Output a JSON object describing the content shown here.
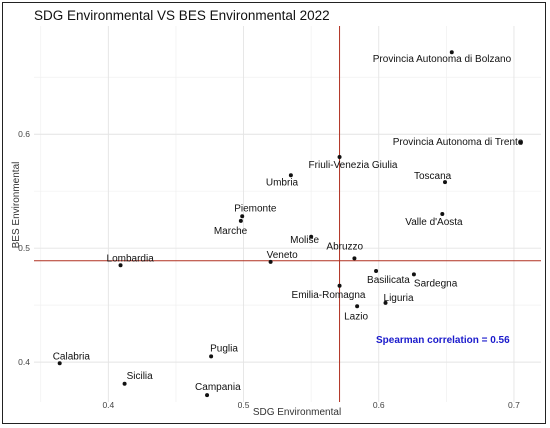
{
  "chart_data": {
    "type": "scatter",
    "title": "SDG Environmental VS BES Environmental 2022",
    "xlabel": "SDG Environmental",
    "ylabel": "BES Environmental",
    "xlim": [
      0.345,
      0.72
    ],
    "ylim": [
      0.365,
      0.695
    ],
    "xticks": [
      "0.4",
      "0.5",
      "0.6",
      "0.7"
    ],
    "yticks": [
      "0.4",
      "0.5",
      "0.6"
    ],
    "grid": true,
    "reference_lines": {
      "x": 0.571,
      "y": 0.489,
      "color": "#b03020"
    },
    "annotation": "Spearman correlation = 0.56",
    "points": [
      {
        "label": "Provincia Autonoma di Bolzano",
        "x": 0.654,
        "y": 0.672
      },
      {
        "label": "Provincia Autonoma di Trento",
        "x": 0.705,
        "y": 0.593
      },
      {
        "label": "Toscana",
        "x": 0.649,
        "y": 0.558
      },
      {
        "label": "Valle d'Aosta",
        "x": 0.647,
        "y": 0.53
      },
      {
        "label": "Friuli-Venezia Giulia",
        "x": 0.571,
        "y": 0.58
      },
      {
        "label": "Umbria",
        "x": 0.535,
        "y": 0.564
      },
      {
        "label": "Piemonte",
        "x": 0.499,
        "y": 0.528
      },
      {
        "label": "Marche",
        "x": 0.498,
        "y": 0.524
      },
      {
        "label": "Molise",
        "x": 0.55,
        "y": 0.51
      },
      {
        "label": "Veneto",
        "x": 0.52,
        "y": 0.488
      },
      {
        "label": "Abruzzo",
        "x": 0.582,
        "y": 0.491
      },
      {
        "label": "Lombardia",
        "x": 0.409,
        "y": 0.485
      },
      {
        "label": "Basilicata",
        "x": 0.598,
        "y": 0.48
      },
      {
        "label": "Sardegna",
        "x": 0.626,
        "y": 0.477
      },
      {
        "label": "Emilia-Romagna",
        "x": 0.571,
        "y": 0.467
      },
      {
        "label": "Liguria",
        "x": 0.605,
        "y": 0.452
      },
      {
        "label": "Lazio",
        "x": 0.584,
        "y": 0.449
      },
      {
        "label": "Puglia",
        "x": 0.476,
        "y": 0.405
      },
      {
        "label": "Calabria",
        "x": 0.364,
        "y": 0.399
      },
      {
        "label": "Sicilia",
        "x": 0.412,
        "y": 0.381
      },
      {
        "label": "Campania",
        "x": 0.473,
        "y": 0.371
      }
    ]
  }
}
